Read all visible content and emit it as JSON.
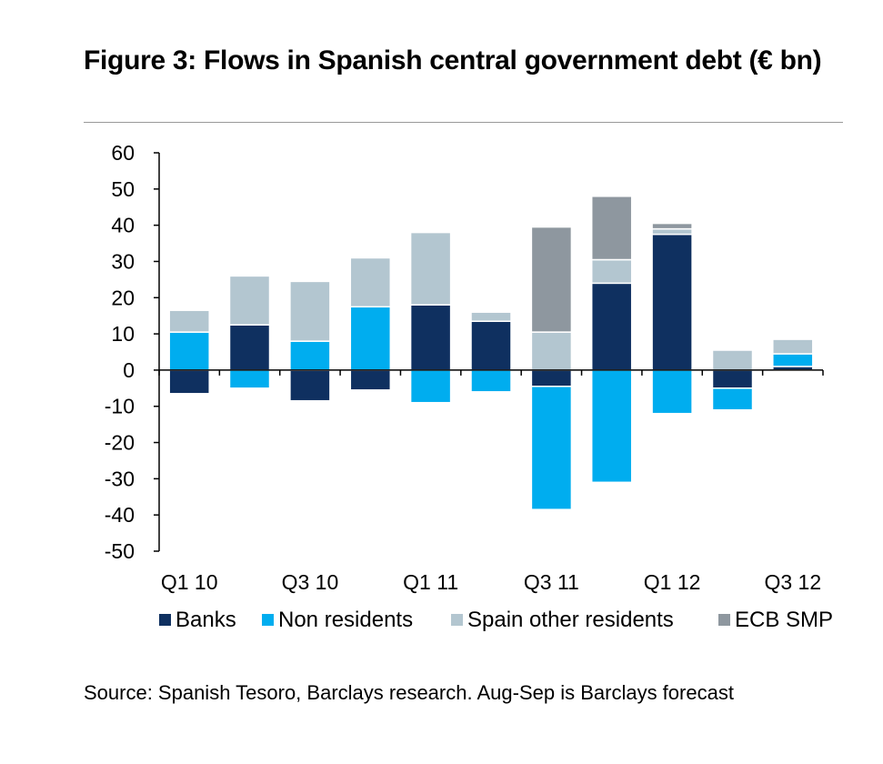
{
  "title": "Figure 3: Flows in Spanish central government debt (€ bn)",
  "source": "Source: Spanish Tesoro, Barclays research. Aug-Sep is Barclays forecast",
  "chart_data": {
    "type": "bar",
    "stacked": true,
    "categories": [
      "Q1 10",
      "Q2 10",
      "Q3 10",
      "Q4 10",
      "Q1 11",
      "Q2 11",
      "Q3 11",
      "Q4 11",
      "Q1 12",
      "Q2 12",
      "Q3 12"
    ],
    "x_tick_labels": [
      "Q1 10",
      "",
      "Q3 10",
      "",
      "Q1 11",
      "",
      "Q3 11",
      "",
      "Q1 12",
      "",
      "Q3 12"
    ],
    "ylim": [
      -50,
      60
    ],
    "yticks": [
      60,
      50,
      40,
      30,
      20,
      10,
      0,
      -10,
      -20,
      -30,
      -40,
      -50
    ],
    "legend_position": "bottom",
    "series": [
      {
        "name": "Banks",
        "color": "#0f3060",
        "values": [
          -6.5,
          12.5,
          -8.5,
          -5.5,
          18,
          13.5,
          -4.5,
          24,
          37.5,
          -5,
          1
        ]
      },
      {
        "name": "Non residents",
        "color": "#00adef",
        "values": [
          10.5,
          -5,
          8,
          17.5,
          -9,
          -6,
          -34,
          -31,
          -12,
          -6,
          3.5
        ]
      },
      {
        "name": "Spain other residents",
        "color": "#b3c6d0",
        "values": [
          6,
          13.5,
          16.5,
          13.5,
          20,
          2.5,
          10.5,
          6.5,
          1.5,
          5.5,
          4
        ]
      },
      {
        "name": "ECB SMP",
        "color": "#8e979f",
        "values": [
          0,
          0,
          0,
          0,
          0,
          0,
          29,
          17.5,
          1.5,
          0,
          0
        ]
      }
    ]
  }
}
